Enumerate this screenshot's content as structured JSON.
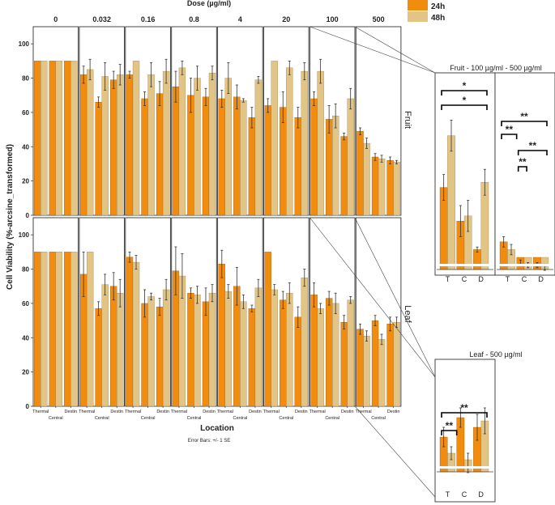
{
  "chart_data": {
    "type": "bar",
    "title": "Dose (µg/ml)",
    "ylabel": "Cell Viability (%-arcsine_transformed)",
    "xlabel": "Location",
    "note": "Error Bars: +/- 1 SE",
    "ylim": [
      0,
      110
    ],
    "yticks": [
      "0",
      "20",
      "40",
      "60",
      "80",
      "100"
    ],
    "doses": [
      "0",
      "0.032",
      "0.16",
      "0.8",
      "4",
      "20",
      "100",
      "500"
    ],
    "locations": [
      "Thermal",
      "Central",
      "Destin"
    ],
    "legend": [
      "24h",
      "48h"
    ],
    "colors": {
      "24h": "#f28c0f",
      "48h": "#e2c485"
    },
    "rows": [
      {
        "name": "Fruit",
        "values": [
          [
            [
              90,
              0,
              90,
              0
            ],
            [
              90,
              0,
              90,
              0
            ],
            [
              90,
              0,
              90,
              0
            ]
          ],
          [
            [
              82,
              5,
              85,
              6
            ],
            [
              66,
              3,
              81,
              8
            ],
            [
              79,
              5,
              82,
              6
            ]
          ],
          [
            [
              82,
              2,
              90,
              0
            ],
            [
              68,
              4,
              82,
              7
            ],
            [
              71,
              7,
              84,
              7
            ]
          ],
          [
            [
              75,
              9,
              86,
              4
            ],
            [
              70,
              10,
              80,
              7
            ],
            [
              69,
              5,
              83,
              4
            ]
          ],
          [
            [
              68,
              5,
              80,
              9
            ],
            [
              69,
              7,
              67,
              1
            ],
            [
              57,
              6,
              79,
              2
            ]
          ],
          [
            [
              64,
              4,
              90,
              0
            ],
            [
              63,
              9,
              86,
              4
            ],
            [
              57,
              6,
              84,
              5
            ]
          ],
          [
            [
              68,
              4,
              84,
              7
            ],
            [
              56,
              8,
              58,
              7
            ],
            [
              46,
              2,
              68,
              6
            ]
          ],
          [
            [
              49,
              2,
              42,
              3
            ],
            [
              34,
              2,
              33,
              2
            ],
            [
              32,
              2,
              31,
              1
            ]
          ]
        ]
      },
      {
        "name": "Leaf",
        "values": [
          [
            [
              90,
              0,
              90,
              0
            ],
            [
              90,
              0,
              90,
              0
            ],
            [
              90,
              0,
              90,
              0
            ]
          ],
          [
            [
              77,
              13,
              90,
              0
            ],
            [
              57,
              4,
              71,
              6
            ],
            [
              70,
              8,
              66,
              8
            ]
          ],
          [
            [
              87,
              3,
              84,
              4
            ],
            [
              60,
              8,
              64,
              2
            ],
            [
              58,
              5,
              68,
              6
            ]
          ],
          [
            [
              79,
              14,
              76,
              13
            ],
            [
              66,
              3,
              65,
              5
            ],
            [
              61,
              8,
              66,
              5
            ]
          ],
          [
            [
              83,
              8,
              67,
              4
            ],
            [
              70,
              11,
              61,
              4
            ],
            [
              57,
              2,
              69,
              5
            ]
          ],
          [
            [
              90,
              0,
              68,
              3
            ],
            [
              62,
              5,
              66,
              6
            ],
            [
              52,
              6,
              75,
              5
            ]
          ],
          [
            [
              65,
              7,
              57,
              3
            ],
            [
              63,
              4,
              60,
              6
            ],
            [
              49,
              4,
              62,
              2
            ]
          ],
          [
            [
              45,
              3,
              41,
              3
            ],
            [
              50,
              3,
              39,
              3
            ],
            [
              48,
              4,
              49,
              3
            ]
          ]
        ]
      }
    ],
    "insets": [
      {
        "title": "Fruit - 100 µg/ml - 500  µg/ml",
        "groups": [
          {
            "values": [
              [
                27,
                5,
                47,
                6
              ],
              [
                14,
                6,
                16,
                6
              ],
              [
                3,
                1,
                29,
                5
              ]
            ],
            "sig": [
              "*",
              "*"
            ]
          },
          {
            "values": [
              [
                6,
                2,
                3,
                2
              ],
              [
                -2,
                1,
                -3,
                1
              ],
              [
                -3,
                1,
                -4,
                1
              ]
            ],
            "sig": [
              "**",
              "**",
              "**",
              "**"
            ]
          }
        ],
        "xlabels": [
          "T",
          "C",
          "D"
        ]
      },
      {
        "title": "Leaf - 500 µg/ml",
        "groups": [
          {
            "values": [
              [
                7,
                3,
                2,
                2
              ],
              [
                13,
                3,
                -1,
                3
              ],
              [
                10,
                4,
                12,
                4
              ]
            ],
            "sig": [
              "**",
              "**"
            ]
          }
        ],
        "xlabels": [
          "T",
          "C",
          "D"
        ]
      }
    ]
  },
  "row_labels": {
    "fruit": "Fruit",
    "leaf": "Leaf"
  },
  "legend_labels": {
    "a": "24h",
    "b": "48h"
  },
  "axis_text": {
    "dose_title": "Dose (µg/ml)",
    "location": "Location",
    "error_note": "Error Bars: +/- 1 SE",
    "ylabel": "Cell Viability (%-arcsine_transformed)"
  },
  "inset_titles": {
    "fruit": "Fruit - 100 µg/ml - 500  µg/ml",
    "leaf": "Leaf - 500 µg/ml"
  }
}
